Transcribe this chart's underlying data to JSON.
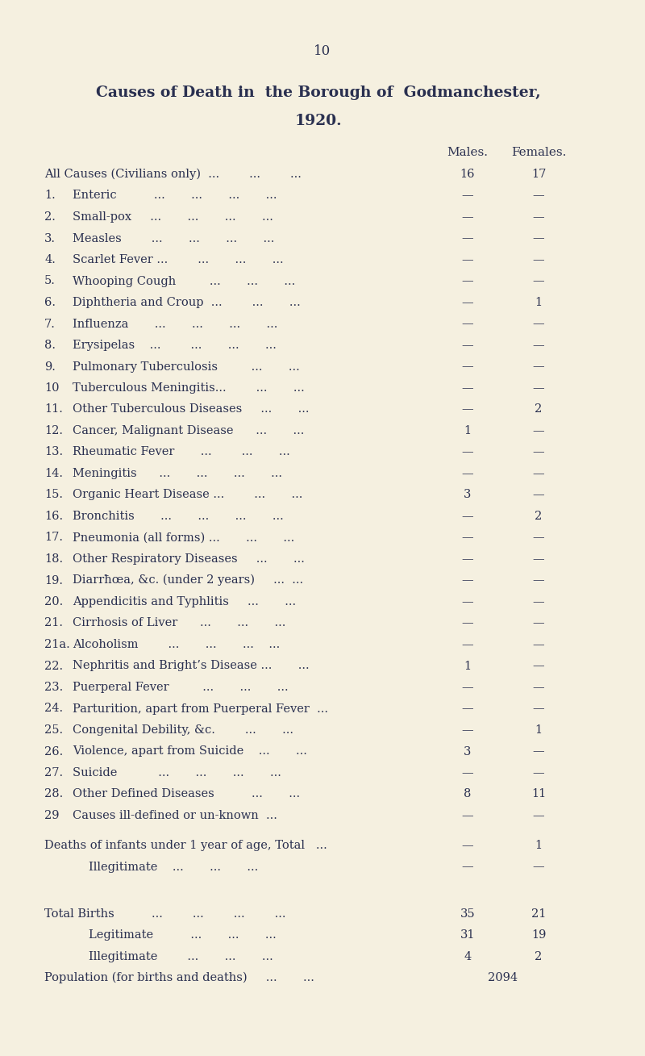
{
  "page_number": "10",
  "title_line1": "Causes of Death in  the Borough of  Godmanchester,",
  "title_line2": "1920.",
  "col_males": "Males.",
  "col_females": "Females.",
  "background_color": "#f5f0e0",
  "text_color": "#2a3050",
  "rows": [
    {
      "label": "All Causes (Civilians only)  ...        ...        ...",
      "num": "",
      "male": "16",
      "female": "17"
    },
    {
      "label": "Enteric          ...       ...       ...       ...",
      "num": "1.",
      "male": "—",
      "female": "—"
    },
    {
      "label": "Small-pox     ...       ...       ...       ...",
      "num": "2.",
      "male": "—",
      "female": "—"
    },
    {
      "label": "Measles        ...       ...       ...       ...",
      "num": "3.",
      "male": "—",
      "female": "—"
    },
    {
      "label": "Scarlet Fever ...        ...       ...       ...",
      "num": "4.",
      "male": "—",
      "female": "—"
    },
    {
      "label": "Whooping Cough         ...       ...       ...",
      "num": "5.",
      "male": "—",
      "female": "—"
    },
    {
      "label": "Diphtheria and Croup  ...        ...       ...",
      "num": "6.",
      "male": "—",
      "female": "1"
    },
    {
      "label": "Influenza       ...       ...       ...       ...",
      "num": "7.",
      "male": "—",
      "female": "—"
    },
    {
      "label": "Erysipelas    ...        ...       ...       ...",
      "num": "8.",
      "male": "—",
      "female": "—"
    },
    {
      "label": "Pulmonary Tuberculosis         ...       ...",
      "num": "9.",
      "male": "—",
      "female": "—"
    },
    {
      "label": "Tuberculous Meningitis...        ...       ...",
      "num": "10",
      "male": "—",
      "female": "—"
    },
    {
      "label": "Other Tuberculous Diseases     ...       ...",
      "num": "11.",
      "male": "—",
      "female": "2"
    },
    {
      "label": "Cancer, Malignant Disease      ...       ...",
      "num": "12.",
      "male": "1",
      "female": "—"
    },
    {
      "label": "Rheumatic Fever       ...        ...       ...",
      "num": "13.",
      "male": "—",
      "female": "—"
    },
    {
      "label": "Meningitis      ...       ...       ...       ...",
      "num": "14.",
      "male": "—",
      "female": "—"
    },
    {
      "label": "Organic Heart Disease ...        ...       ...",
      "num": "15.",
      "male": "3",
      "female": "—"
    },
    {
      "label": "Bronchitis       ...       ...       ...       ...",
      "num": "16.",
      "male": "—",
      "female": "2"
    },
    {
      "label": "Pneumonia (all forms) ...       ...       ...",
      "num": "17.",
      "male": "—",
      "female": "—"
    },
    {
      "label": "Other Respiratory Diseases     ...       ...",
      "num": "18.",
      "male": "—",
      "female": "—"
    },
    {
      "label": "Diarrħœa, &c. (under 2 years)     ...  ...",
      "num": "19.",
      "male": "—",
      "female": "—"
    },
    {
      "label": "Appendicitis and Typhlitis     ...       ...",
      "num": "20.",
      "male": "—",
      "female": "—"
    },
    {
      "label": "Cirrhosis of Liver      ...       ...       ...",
      "num": "21.",
      "male": "—",
      "female": "—"
    },
    {
      "label": "Alcoholism        ...       ...       ...    ...",
      "num": "21a.",
      "male": "—",
      "female": "—"
    },
    {
      "label": "Nephritis and Bright’s Disease ...       ...",
      "num": "22.",
      "male": "1",
      "female": "—"
    },
    {
      "label": "Puerperal Fever         ...       ...       ...",
      "num": "23.",
      "male": "—",
      "female": "—"
    },
    {
      "label": "Parturition, apart from Puerperal Fever  ...",
      "num": "24.",
      "male": "—",
      "female": "—"
    },
    {
      "label": "Congenital Debility, &c.        ...       ...",
      "num": "25.",
      "male": "—",
      "female": "1"
    },
    {
      "label": "Violence, apart from Suicide    ...       ...",
      "num": "26.",
      "male": "3",
      "female": "—"
    },
    {
      "label": "Suicide           ...       ...       ...       ...",
      "num": "27.",
      "male": "—",
      "female": "—"
    },
    {
      "label": "Other Defined Diseases          ...       ...",
      "num": "28.",
      "male": "8",
      "female": "11"
    },
    {
      "label": "Causes ill-defined or un-known  ...",
      "num": "29",
      "male": "—",
      "female": "—"
    }
  ],
  "section_rows": [
    {
      "label": "Deaths of infants under 1 year of age, Total   ...",
      "indent": false,
      "male": "—",
      "female": "1"
    },
    {
      "label": "Illegitimate    ...       ...       ...",
      "indent": true,
      "male": "—",
      "female": "—"
    }
  ],
  "totals_rows": [
    {
      "label": "Total Births          ...        ...        ...        ...",
      "indent": false,
      "male": "35",
      "female": "21"
    },
    {
      "label": "Legitimate          ...       ...       ...",
      "indent": true,
      "male": "31",
      "female": "19"
    },
    {
      "label": "Illegitimate        ...       ...       ...",
      "indent": true,
      "male": "4",
      "female": "2"
    }
  ],
  "population_row": {
    "label": "Population (for births and deaths)     ...       ...",
    "value": "2094"
  }
}
